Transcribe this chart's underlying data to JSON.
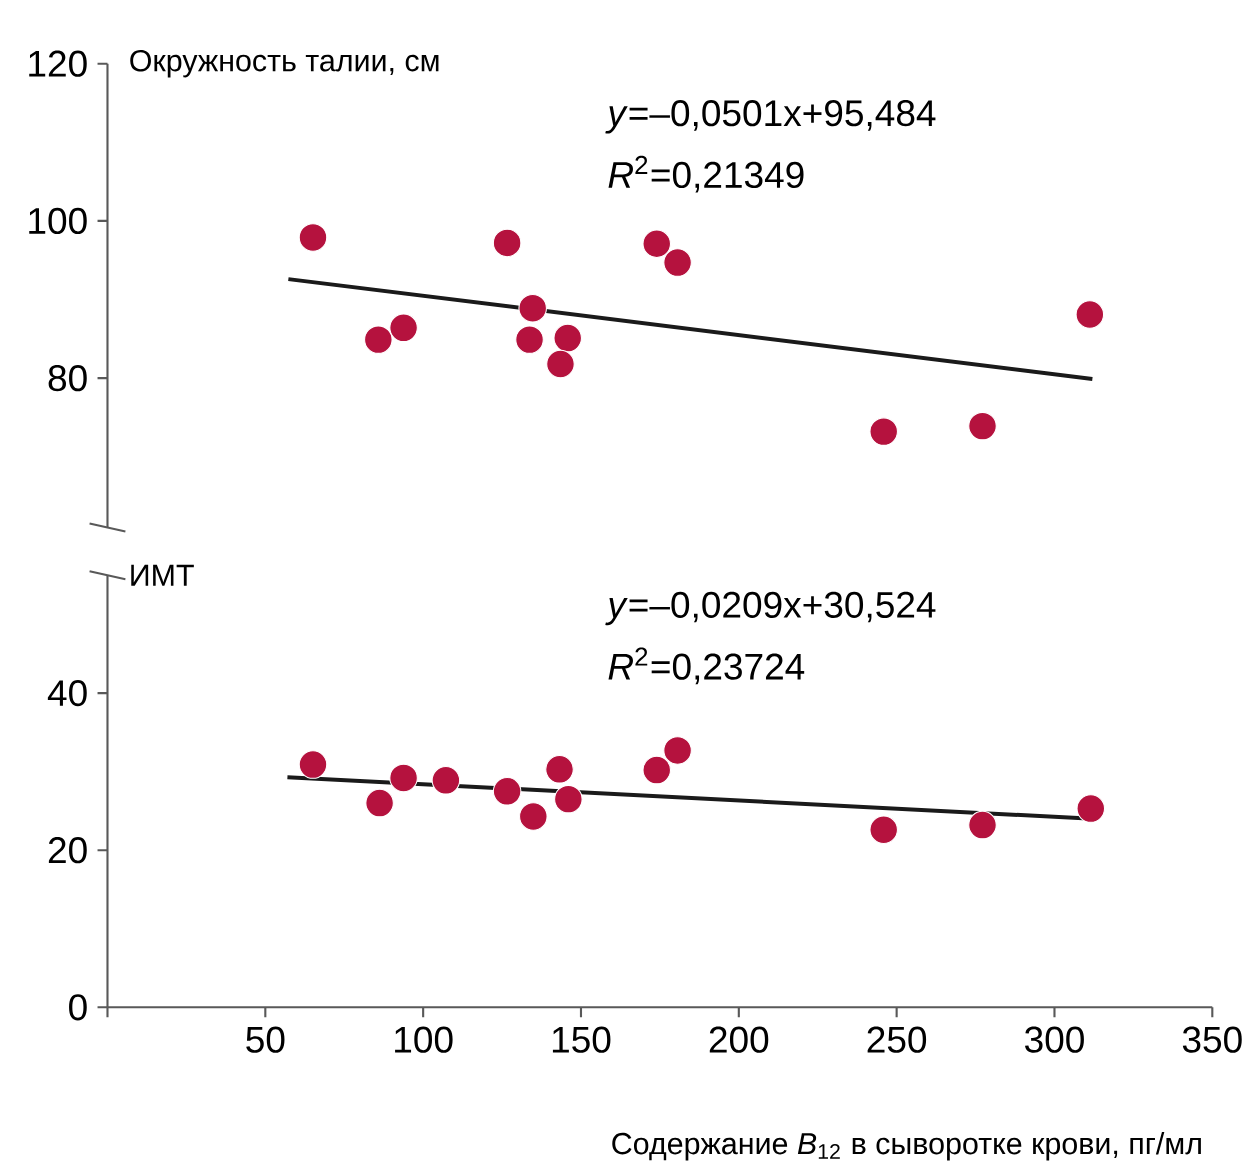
{
  "chart_data": [
    {
      "type": "scatter",
      "ylabel": "Окружность талии, см",
      "tick_labels": "y",
      "xlim": [
        0,
        350
      ],
      "ylim": [
        61,
        120
      ],
      "yticks": [
        80,
        100,
        120
      ],
      "annotations": [
        "*y*=–0,0501x+95,484",
        "*R*$^{2}$=0,21349"
      ],
      "series": [
        {
          "color": "#b5123e",
          "x": [
            65.1,
            85.8,
            93.8,
            126.6,
            134.7,
            133.7,
            145.8,
            143.5,
            174,
            180.6,
            245.9,
            277.2,
            311.2
          ],
          "values": [
            97.9,
            84.9,
            86.4,
            97.2,
            88.9,
            84.9,
            85.1,
            81.8,
            97.1,
            94.7,
            73.2,
            73.9,
            88.1
          ]
        },
        {
          "type": "line",
          "marker": "none",
          "color": "#1a1a1a",
          "x": [
            57.3,
            312
          ],
          "values": [
            92.6,
            79.9
          ]
        }
      ]
    },
    {
      "type": "scatter",
      "ylabel": "ИМТ",
      "xlabel": "Содержание *B*$_{12}$ в сыворотке крови, пг/мл",
      "xlim": [
        0,
        350
      ],
      "ylim": [
        0,
        55
      ],
      "yticks": [
        0,
        20,
        40
      ],
      "xticks": [
        {
          "value": 0,
          "label": null
        },
        50,
        100,
        150,
        200,
        250,
        300,
        350
      ],
      "annotations": [
        "*y*=–0,0209x+30,524",
        "*R*$^{2}$=0,23724"
      ],
      "series": [
        {
          "color": "#b5123e",
          "x": [
            65.1,
            86.2,
            93.8,
            107.2,
            126.6,
            134.9,
            143.2,
            146,
            174,
            180.6,
            245.9,
            277.2,
            311.5
          ],
          "values": [
            30.9,
            26.0,
            29.2,
            28.9,
            27.5,
            24.3,
            30.3,
            26.5,
            30.2,
            32.7,
            22.6,
            23.2,
            25.3
          ]
        },
        {
          "type": "line",
          "marker": "none",
          "color": "#1a1a1a",
          "x": [
            57,
            312
          ],
          "values": [
            29.3,
            24.0
          ]
        }
      ]
    }
  ]
}
